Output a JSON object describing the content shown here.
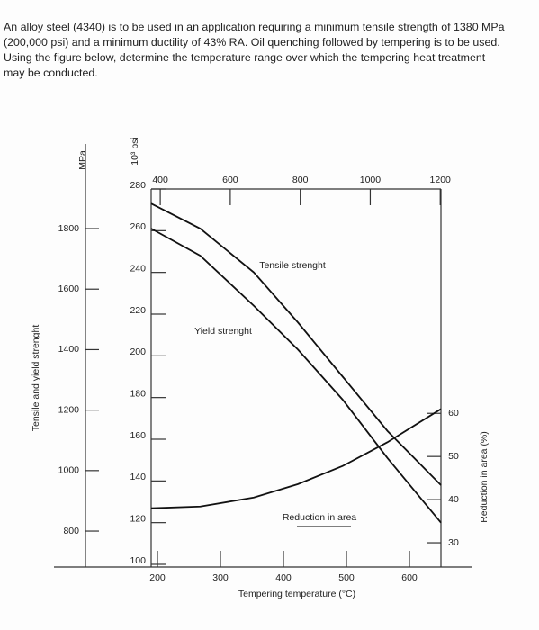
{
  "problem": "An alloy steel (4340) is to be used in an application requiring a minimum tensile strength of 1380 MPa (200,000 psi) and a minimum ductility of 43% RA. Oil quenching followed by tempering is to be used. Using the figure below, determine the temperature range over which the tempering heat treatment may be conducted.",
  "chart_data": {
    "type": "line",
    "x_label": "Tempering temperature (°C)",
    "y_label": "Tensile and yield strenght",
    "y_unit_label": "10³ psi",
    "y3_unit_label": "MPa",
    "y2_label": "Reduction in area (%)",
    "x": [
      190,
      268,
      353,
      423,
      494,
      565,
      650
    ],
    "xlim": [
      190,
      650
    ],
    "xticks": [
      200,
      300,
      400,
      500,
      600
    ],
    "x2lim": [
      374,
      1202
    ],
    "x2ticks": [
      400,
      600,
      800,
      1000,
      1200
    ],
    "ylim": [
      100,
      280
    ],
    "yticks": [
      100,
      120,
      140,
      160,
      180,
      200,
      220,
      240,
      260,
      280
    ],
    "y3lim": [
      690,
      1931
    ],
    "y3ticks": [
      800,
      1000,
      1200,
      1400,
      1600,
      1800
    ],
    "y2lim": [
      25,
      112
    ],
    "y2ticks": [
      30,
      40,
      50,
      60
    ],
    "series": [
      {
        "name": "Tensile strenght",
        "color": "#111111",
        "values": [
          273,
          261,
          240,
          216,
          190,
          164,
          138
        ]
      },
      {
        "name": "Yield strenght",
        "color": "#111111",
        "values": [
          261,
          248,
          224,
          203,
          179,
          151,
          120
        ]
      },
      {
        "name": "Reduction in area",
        "color": "#111111",
        "axis": "y2",
        "values": [
          38,
          38.4,
          40.5,
          43.6,
          47.8,
          53.3,
          61
        ]
      }
    ]
  }
}
